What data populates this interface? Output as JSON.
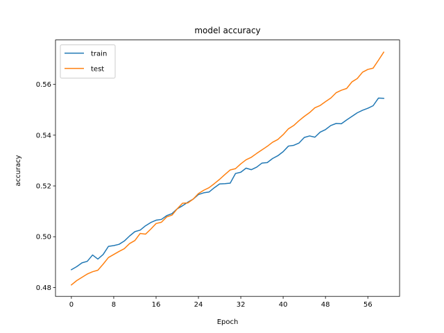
{
  "chart_data": {
    "type": "line",
    "title": "model accuracy",
    "xlabel": "Epoch",
    "ylabel": "accuracy",
    "xlim": [
      -3,
      62
    ],
    "ylim": [
      0.4765,
      0.5775
    ],
    "xticks": [
      0,
      8,
      16,
      24,
      32,
      40,
      48,
      56
    ],
    "xtick_labels": [
      "0",
      "8",
      "16",
      "24",
      "32",
      "40",
      "48",
      "56"
    ],
    "yticks": [
      0.48,
      0.5,
      0.52,
      0.54,
      0.56
    ],
    "ytick_labels": [
      "0.48",
      "0.50",
      "0.52",
      "0.54",
      "0.56"
    ],
    "grid": false,
    "legend": {
      "location": "upper left"
    },
    "x": [
      0,
      1,
      2,
      3,
      4,
      5,
      6,
      7,
      8,
      9,
      10,
      11,
      12,
      13,
      14,
      15,
      16,
      17,
      18,
      19,
      20,
      21,
      22,
      23,
      24,
      25,
      26,
      27,
      28,
      29,
      30,
      31,
      32,
      33,
      34,
      35,
      36,
      37,
      38,
      39,
      40,
      41,
      42,
      43,
      44,
      45,
      46,
      47,
      48,
      49,
      50,
      51,
      52,
      53,
      54,
      55,
      56,
      57,
      58,
      59
    ],
    "series": [
      {
        "name": "train",
        "color": "#1f77b4",
        "values": [
          0.487,
          0.4882,
          0.4897,
          0.4903,
          0.4928,
          0.4912,
          0.493,
          0.4962,
          0.4965,
          0.497,
          0.4983,
          0.5003,
          0.502,
          0.5026,
          0.5043,
          0.5056,
          0.5065,
          0.5068,
          0.5083,
          0.5091,
          0.511,
          0.5122,
          0.5136,
          0.5148,
          0.5166,
          0.5173,
          0.5176,
          0.5193,
          0.5208,
          0.5209,
          0.5211,
          0.5249,
          0.5254,
          0.527,
          0.5264,
          0.5274,
          0.529,
          0.5292,
          0.5308,
          0.5319,
          0.5335,
          0.5357,
          0.536,
          0.5369,
          0.5391,
          0.5397,
          0.5392,
          0.5412,
          0.5422,
          0.5438,
          0.5446,
          0.5445,
          0.546,
          0.5474,
          0.5488,
          0.5498,
          0.5506,
          0.5516,
          0.5546,
          0.5545
        ]
      },
      {
        "name": "test",
        "color": "#ff7f0e",
        "values": [
          0.481,
          0.4827,
          0.484,
          0.4853,
          0.4862,
          0.4868,
          0.4892,
          0.4918,
          0.493,
          0.4942,
          0.4953,
          0.4973,
          0.4985,
          0.5013,
          0.501,
          0.503,
          0.5052,
          0.5057,
          0.5078,
          0.5085,
          0.511,
          0.5132,
          0.5133,
          0.5148,
          0.517,
          0.5183,
          0.5193,
          0.5209,
          0.5226,
          0.5245,
          0.5263,
          0.5268,
          0.5287,
          0.5303,
          0.5313,
          0.5328,
          0.5342,
          0.5356,
          0.5372,
          0.5383,
          0.5402,
          0.5425,
          0.5438,
          0.5457,
          0.5474,
          0.5489,
          0.5508,
          0.5517,
          0.5532,
          0.5546,
          0.5567,
          0.5577,
          0.5584,
          0.561,
          0.5623,
          0.5648,
          0.5659,
          0.5664,
          0.5695,
          0.5727
        ]
      }
    ]
  }
}
